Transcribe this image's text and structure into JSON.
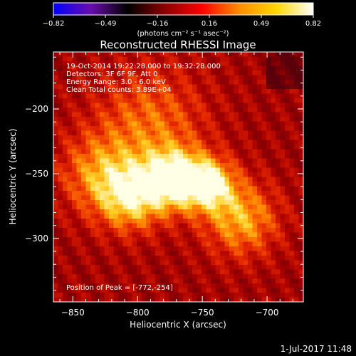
{
  "chart_data": {
    "type": "heatmap",
    "colorbar": {
      "ticks": [
        "-0.82",
        "-0.49",
        "-0.16",
        "0.16",
        "0.49",
        "0.82"
      ],
      "range": [
        -0.82,
        0.82
      ],
      "colors": [
        "#0000ff",
        "#6a0dad",
        "#000000",
        "#8b0000",
        "#ff0000",
        "#ff8c00",
        "#ffd700",
        "#ffffff"
      ],
      "unit_label": "(photons cm⁻² s⁻¹ asec⁻²)"
    },
    "title": "Reconstructed RHESSI Image",
    "xlabel": "Heliocentric X (arcsec)",
    "ylabel": "Heliocentric Y (arcsec)",
    "xlim": [
      -865,
      -672
    ],
    "ylim": [
      -349,
      -156
    ],
    "xticks": [
      {
        "value": -850,
        "label": "−850"
      },
      {
        "value": -800,
        "label": "−800"
      },
      {
        "value": -750,
        "label": "−750"
      },
      {
        "value": -700,
        "label": "−700"
      }
    ],
    "yticks": [
      {
        "value": -200,
        "label": "−200"
      },
      {
        "value": -250,
        "label": "−250"
      },
      {
        "value": -300,
        "label": "−300"
      }
    ],
    "annotations": [
      "19-Oct-2014 19:22:28.000 to 19:32:28.000",
      "Detectors: 3F 6F 9F, Att 0",
      "Energy Range: 3.0 - 6.0 keV",
      "Clean    Total counts: 3.89E+04"
    ],
    "peak_label": "Position of Peak = [-772,-254]",
    "peak": {
      "x": -772,
      "y": -254
    },
    "emission_sources": [
      {
        "x": -772,
        "y": -254,
        "peak": 1.0,
        "sigma": 16
      },
      {
        "x": -745,
        "y": -258,
        "peak": 0.85,
        "sigma": 14
      },
      {
        "x": -805,
        "y": -268,
        "peak": 0.75,
        "sigma": 18
      },
      {
        "x": -720,
        "y": -285,
        "peak": 0.65,
        "sigma": 20
      },
      {
        "x": -830,
        "y": -250,
        "peak": 0.5,
        "sigma": 22
      },
      {
        "x": -790,
        "y": -210,
        "peak": 0.45,
        "sigma": 30
      }
    ]
  },
  "footer": {
    "timestamp": "1-Jul-2017 11:48"
  }
}
